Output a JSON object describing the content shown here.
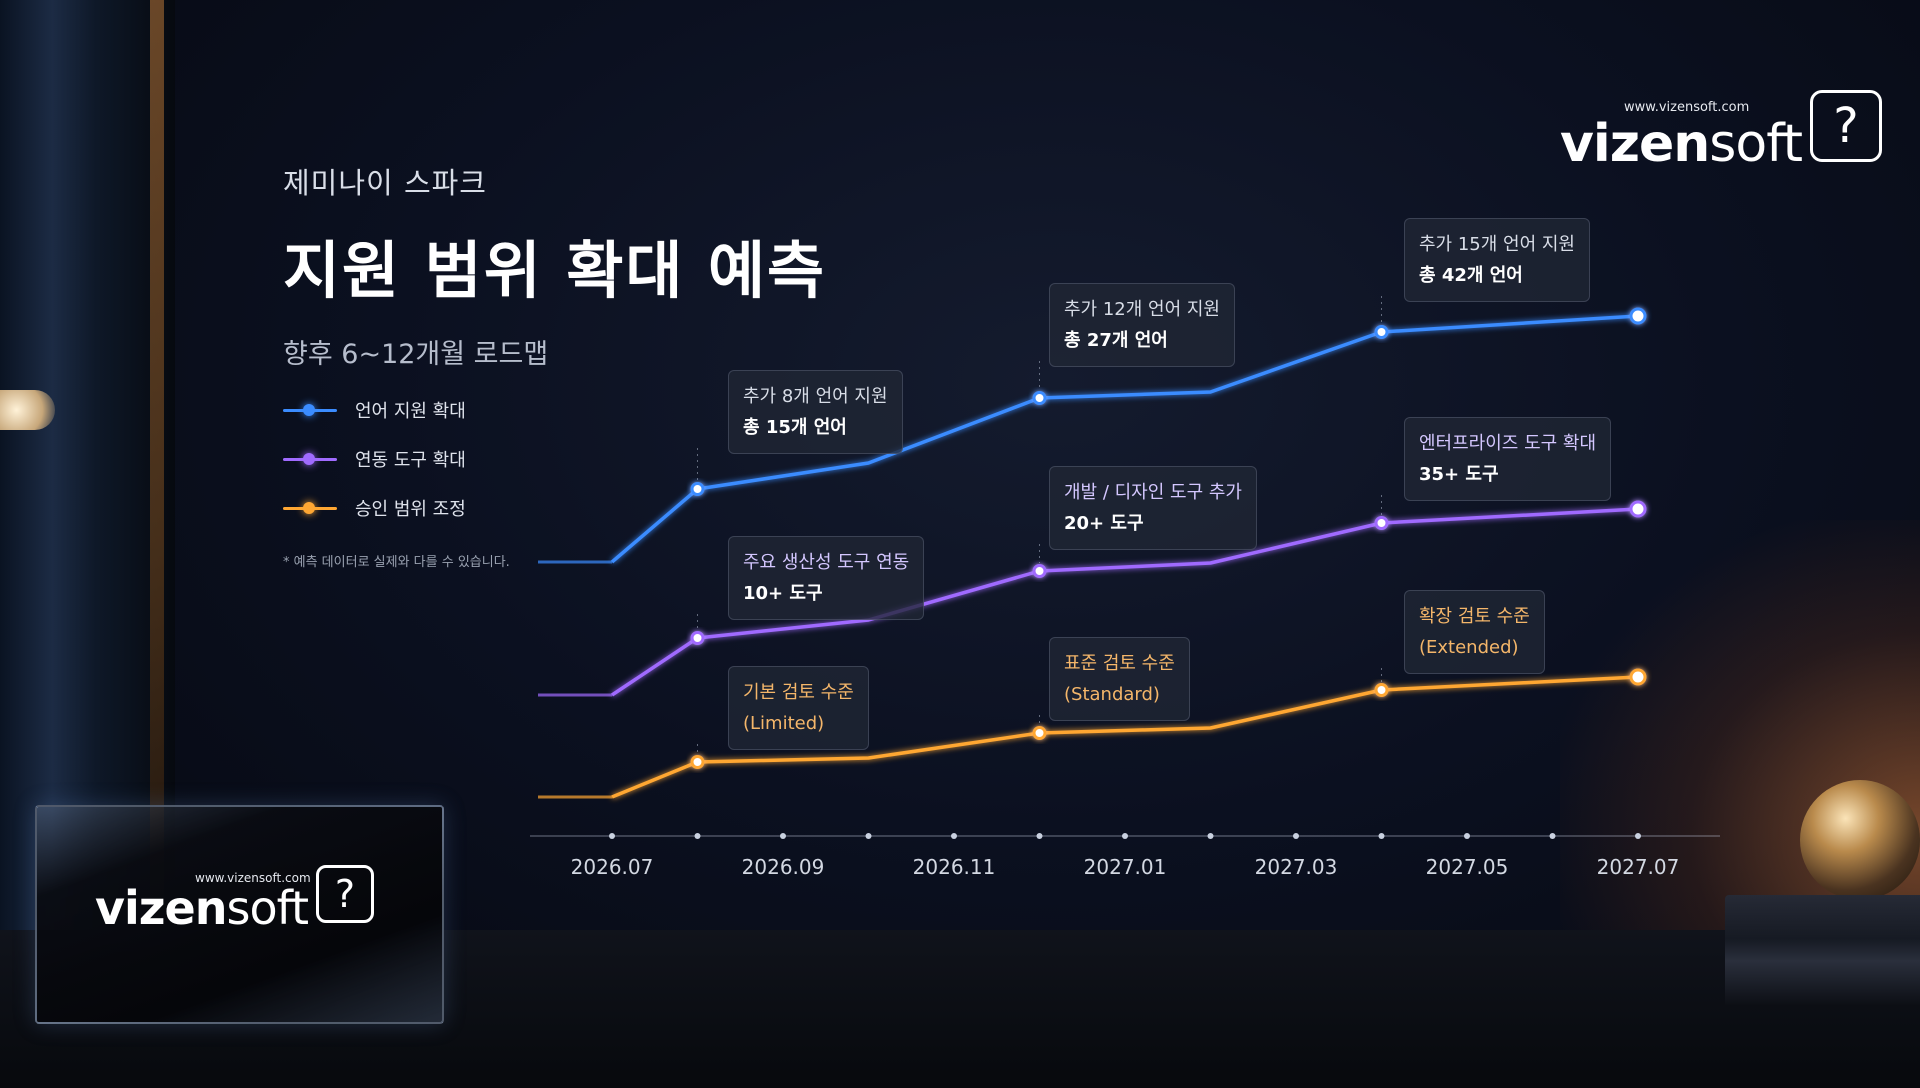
{
  "header": {
    "subtitle": "제미나이 스파크",
    "title": "지원 범위 확대 예측",
    "caption": "향후 6~12개월 로드맵"
  },
  "legend": [
    {
      "label": "언어 지원 확대",
      "color": "#3b8cff"
    },
    {
      "label": "연동 도구 확대",
      "color": "#a06bff"
    },
    {
      "label": "승인 범위 조정",
      "color": "#ffa733"
    }
  ],
  "footnote": "* 예측 데이터로 실제와 다를 수 있습니다.",
  "brand": {
    "url": "www.vizensoft.com",
    "name_bold": "vizen",
    "name_light": "soft",
    "icon": "question-bubble-icon"
  },
  "chart_data": {
    "type": "line",
    "x_ticks": [
      "2026.07",
      "2026.09",
      "2026.11",
      "2027.01",
      "2027.03",
      "2027.05",
      "2027.07"
    ],
    "x_range": [
      "2026.07",
      "2027.07"
    ],
    "grid": false,
    "legend_position": "left",
    "series": [
      {
        "name": "언어 지원 확대",
        "color": "#3b8cff",
        "points": [
          {
            "x": "2026.07"
          },
          {
            "x": "2026.08",
            "marker": true,
            "callout": [
              "추가 8개 언어 지원",
              "총 15개 언어"
            ]
          },
          {
            "x": "2026.10"
          },
          {
            "x": "2026.12",
            "marker": true,
            "callout": [
              "추가 12개 언어 지원",
              "총 27개 언어"
            ]
          },
          {
            "x": "2027.02"
          },
          {
            "x": "2027.04",
            "marker": true,
            "callout": [
              "추가 15개 언어 지원",
              "총 42개 언어"
            ]
          },
          {
            "x": "2027.07",
            "marker": true
          }
        ]
      },
      {
        "name": "연동 도구 확대",
        "color": "#a06bff",
        "points": [
          {
            "x": "2026.07"
          },
          {
            "x": "2026.08",
            "marker": true,
            "callout": [
              "주요 생산성 도구 연동",
              "10+ 도구"
            ]
          },
          {
            "x": "2026.10"
          },
          {
            "x": "2026.12",
            "marker": true,
            "callout": [
              "개발 / 디자인 도구 추가",
              "20+ 도구"
            ]
          },
          {
            "x": "2027.02"
          },
          {
            "x": "2027.04",
            "marker": true,
            "callout": [
              "엔터프라이즈 도구 확대",
              "35+ 도구"
            ]
          },
          {
            "x": "2027.07",
            "marker": true
          }
        ]
      },
      {
        "name": "승인 범위 조정",
        "color": "#ffa733",
        "points": [
          {
            "x": "2026.07"
          },
          {
            "x": "2026.08",
            "marker": true,
            "callout": [
              "기본 검토 수준",
              "(Limited)"
            ]
          },
          {
            "x": "2026.10"
          },
          {
            "x": "2026.12",
            "marker": true,
            "callout": [
              "표준 검토 수준",
              "(Standard)"
            ]
          },
          {
            "x": "2027.02"
          },
          {
            "x": "2027.04",
            "marker": true,
            "callout": [
              "확장 검토 수준",
              "(Extended)"
            ]
          },
          {
            "x": "2027.07",
            "marker": true
          }
        ]
      }
    ]
  }
}
